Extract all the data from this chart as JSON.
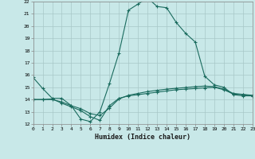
{
  "title": "",
  "xlabel": "Humidex (Indice chaleur)",
  "ylabel": "",
  "bg_color": "#c8e8e8",
  "grid_color": "#a8c8c8",
  "line_color": "#1a6b5e",
  "x_min": 0,
  "x_max": 23,
  "y_min": 12,
  "y_max": 22,
  "curve1_x": [
    0,
    1,
    2,
    3,
    4,
    5,
    6,
    7,
    8,
    9,
    10,
    11,
    12,
    13,
    14,
    15,
    16,
    17,
    18,
    19,
    20,
    21,
    22,
    23
  ],
  "curve1_y": [
    15.8,
    14.9,
    14.1,
    14.1,
    13.5,
    12.4,
    12.2,
    13.0,
    15.3,
    17.8,
    21.3,
    21.8,
    22.3,
    21.6,
    21.5,
    20.3,
    19.4,
    18.7,
    15.9,
    15.2,
    15.0,
    14.4,
    14.3,
    14.3
  ],
  "curve2_x": [
    0,
    1,
    2,
    3,
    4,
    5,
    6,
    7,
    8,
    9,
    10,
    11,
    12,
    13,
    14,
    15,
    16,
    17,
    18,
    19,
    20,
    21,
    22,
    23
  ],
  "curve2_y": [
    14.0,
    14.0,
    14.05,
    13.7,
    13.4,
    13.1,
    12.6,
    12.3,
    13.5,
    14.1,
    14.3,
    14.4,
    14.5,
    14.6,
    14.7,
    14.8,
    14.85,
    14.9,
    14.95,
    15.0,
    14.8,
    14.45,
    14.4,
    14.3
  ],
  "curve3_x": [
    0,
    1,
    2,
    3,
    4,
    5,
    6,
    7,
    8,
    9,
    10,
    11,
    12,
    13,
    14,
    15,
    16,
    17,
    18,
    19,
    20,
    21,
    22,
    23
  ],
  "curve3_y": [
    14.0,
    14.0,
    14.0,
    13.8,
    13.5,
    13.25,
    12.85,
    12.7,
    13.3,
    14.05,
    14.35,
    14.5,
    14.65,
    14.75,
    14.85,
    14.92,
    14.98,
    15.05,
    15.1,
    15.05,
    14.85,
    14.5,
    14.42,
    14.35
  ],
  "yticks": [
    12,
    13,
    14,
    15,
    16,
    17,
    18,
    19,
    20,
    21,
    22
  ],
  "xticks": [
    0,
    1,
    2,
    3,
    4,
    5,
    6,
    7,
    8,
    9,
    10,
    11,
    12,
    13,
    14,
    15,
    16,
    17,
    18,
    19,
    20,
    21,
    22,
    23
  ]
}
